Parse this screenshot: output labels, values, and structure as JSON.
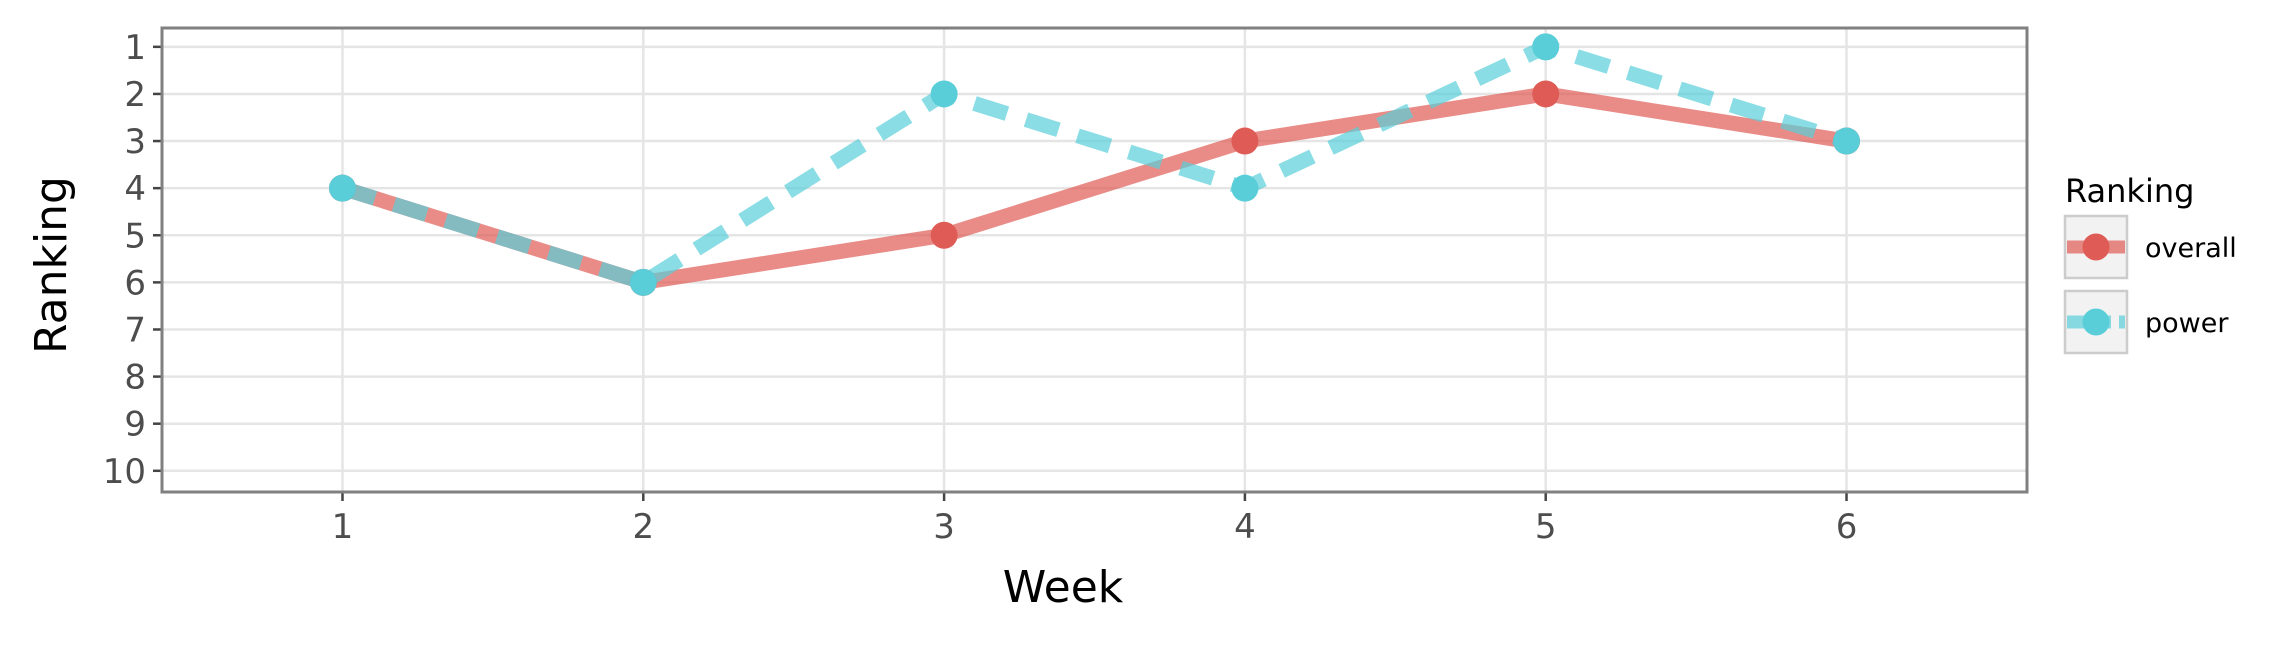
{
  "chart_data": {
    "type": "line",
    "title": "",
    "xlabel": "Week",
    "ylabel": "Ranking",
    "x": [
      1,
      2,
      3,
      4,
      5,
      6
    ],
    "x_ticks": [
      "1",
      "2",
      "3",
      "4",
      "5",
      "6"
    ],
    "y_ticks": [
      "1",
      "2",
      "3",
      "4",
      "5",
      "6",
      "7",
      "8",
      "9",
      "10"
    ],
    "xlim": [
      0.4,
      6.6
    ],
    "ylim": [
      10.45,
      0.6
    ],
    "y_reversed": true,
    "grid": true,
    "legend": {
      "title": "Ranking",
      "placement": "right"
    },
    "series": [
      {
        "name": "overall",
        "values": [
          4,
          6,
          5,
          3,
          2,
          3
        ],
        "color": "#DF5B55",
        "line_style": "solid"
      },
      {
        "name": "power",
        "values": [
          4,
          6,
          2,
          4,
          1,
          3
        ],
        "color": "#59CED8",
        "line_style": "dashed"
      }
    ]
  }
}
